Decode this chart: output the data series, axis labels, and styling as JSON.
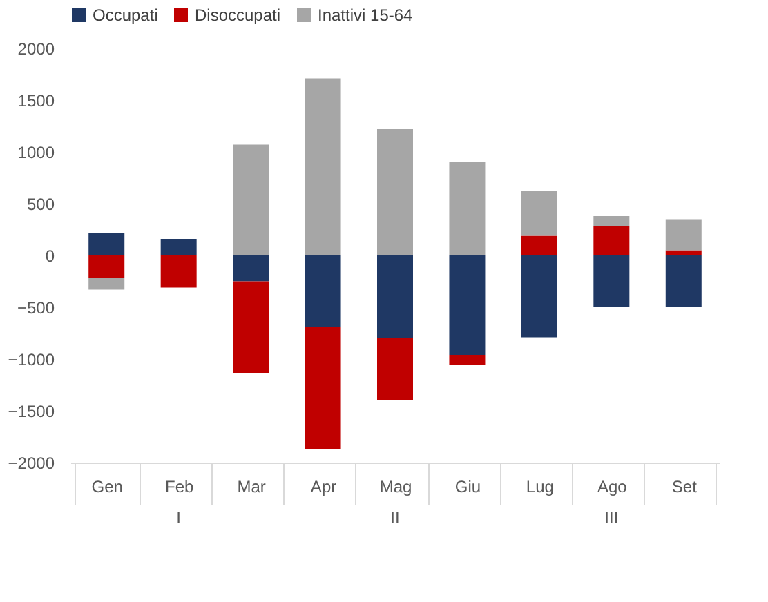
{
  "chart_data": {
    "type": "bar",
    "stacked": true,
    "categories": [
      "Gen",
      "Feb",
      "Mar",
      "Apr",
      "Mag",
      "Giu",
      "Lug",
      "Ago",
      "Set"
    ],
    "series": [
      {
        "name": "Occupati",
        "color": "#1f3864",
        "values": [
          220,
          160,
          -250,
          -690,
          -800,
          -960,
          -790,
          -500,
          -500
        ]
      },
      {
        "name": "Disoccupati",
        "color": "#c00000",
        "values": [
          -220,
          -310,
          -890,
          -1180,
          -600,
          -100,
          190,
          280,
          50
        ]
      },
      {
        "name": "Inattivi 15-64",
        "color": "#a6a6a6",
        "values": [
          -110,
          0,
          1070,
          1710,
          1220,
          900,
          430,
          100,
          300
        ]
      }
    ],
    "ylim": [
      -2000,
      2000
    ],
    "yticks": [
      -2000,
      -1500,
      -1000,
      -500,
      0,
      500,
      1000,
      1500,
      2000
    ],
    "grid": false,
    "legend": "top",
    "annotations": [
      "I",
      "II",
      "III"
    ]
  }
}
